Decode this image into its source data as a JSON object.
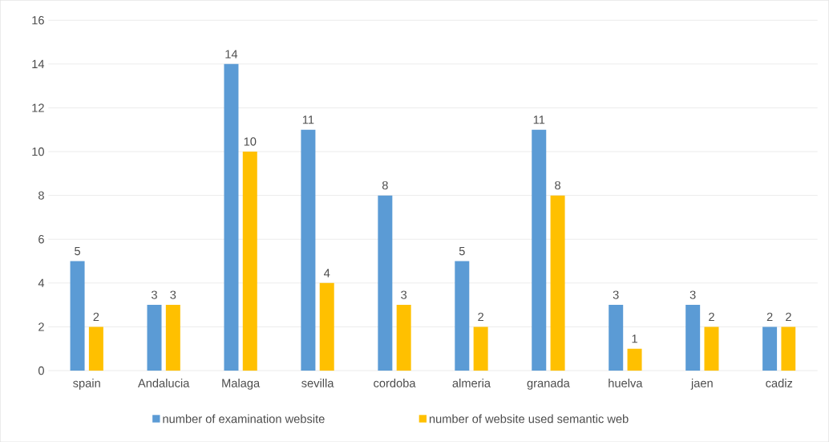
{
  "chart_data": {
    "type": "bar",
    "categories": [
      "spain",
      "Andalucia",
      "Malaga",
      "sevilla",
      "cordoba",
      "almeria",
      "granada",
      "huelva",
      "jaen",
      "cadiz"
    ],
    "series": [
      {
        "name": "number of examination website",
        "color": "#5b9bd5",
        "values": [
          5,
          3,
          14,
          11,
          8,
          5,
          11,
          3,
          3,
          2
        ]
      },
      {
        "name": "number of website used semantic web",
        "color": "#ffc000",
        "values": [
          2,
          3,
          10,
          4,
          3,
          2,
          8,
          1,
          2,
          2
        ]
      }
    ],
    "ylim": [
      0,
      16
    ],
    "yticks": [
      0,
      2,
      4,
      6,
      8,
      10,
      12,
      14,
      16
    ],
    "grid": "y",
    "legend": "bottom",
    "data_labels": true
  }
}
